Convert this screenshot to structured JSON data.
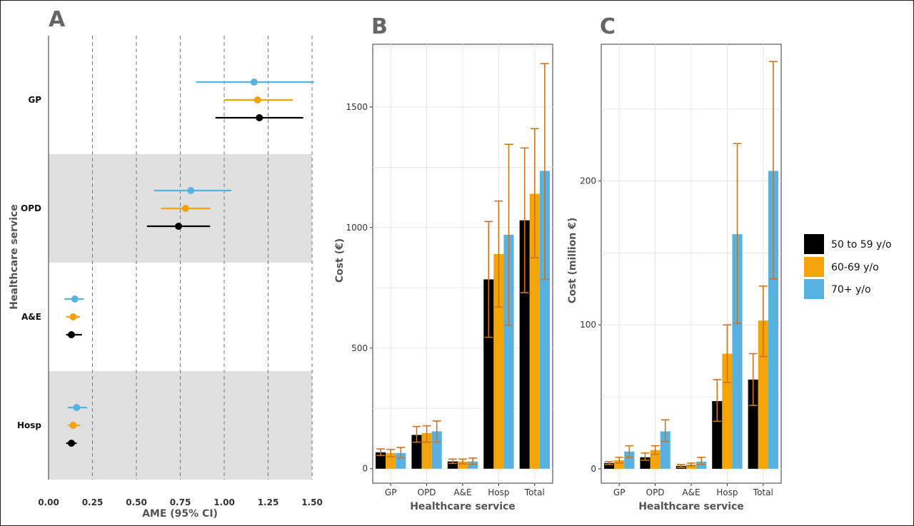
{
  "colors": {
    "s50": "#000000",
    "s60": "#f5a30a",
    "s70": "#58b2e1",
    "error": "#c9741f",
    "band": "#e0e0e0",
    "grid": "#e8e8e8",
    "dash": "#777777"
  },
  "legend": {
    "items": [
      "50 to 59 y/o",
      "60-69 y/o",
      "70+ y/o"
    ]
  },
  "chart_data": [
    {
      "panel": "A",
      "type": "scatter",
      "xlabel": "AME (95% CI)",
      "ylabel": "Healthcare service",
      "xlim": [
        0,
        1.5
      ],
      "xticks": [
        "0.00",
        "0.25",
        "0.50",
        "0.75",
        "1.00",
        "1.25",
        "1.50"
      ],
      "categories": [
        "GP",
        "OPD",
        "A&E",
        "Hosp"
      ],
      "shaded_bands": [
        "OPD",
        "Hosp"
      ],
      "series": [
        {
          "name": "50 to 59 y/o",
          "points": [
            {
              "cat": "GP",
              "est": 1.2,
              "lo": 0.95,
              "hi": 1.45
            },
            {
              "cat": "OPD",
              "est": 0.74,
              "lo": 0.56,
              "hi": 0.92
            },
            {
              "cat": "A&E",
              "est": 0.13,
              "lo": 0.1,
              "hi": 0.19
            },
            {
              "cat": "Hosp",
              "est": 0.13,
              "lo": 0.1,
              "hi": 0.16
            }
          ]
        },
        {
          "name": "60-69 y/o",
          "points": [
            {
              "cat": "GP",
              "est": 1.19,
              "lo": 1.0,
              "hi": 1.39
            },
            {
              "cat": "OPD",
              "est": 0.78,
              "lo": 0.64,
              "hi": 0.92
            },
            {
              "cat": "A&E",
              "est": 0.14,
              "lo": 0.1,
              "hi": 0.18
            },
            {
              "cat": "Hosp",
              "est": 0.14,
              "lo": 0.11,
              "hi": 0.18
            }
          ]
        },
        {
          "name": "70+ y/o",
          "points": [
            {
              "cat": "GP",
              "est": 1.17,
              "lo": 0.84,
              "hi": 1.51
            },
            {
              "cat": "OPD",
              "est": 0.81,
              "lo": 0.6,
              "hi": 1.04
            },
            {
              "cat": "A&E",
              "est": 0.15,
              "lo": 0.09,
              "hi": 0.2
            },
            {
              "cat": "Hosp",
              "est": 0.16,
              "lo": 0.11,
              "hi": 0.22
            }
          ]
        }
      ]
    },
    {
      "panel": "B",
      "type": "bar",
      "xlabel": "Healthcare service",
      "ylabel": "Cost (€)",
      "ylim": [
        -60,
        1760
      ],
      "yticks": [
        0,
        500,
        1000,
        1500
      ],
      "categories": [
        "GP",
        "OPD",
        "A&E",
        "Hosp",
        "Total"
      ],
      "series": [
        {
          "name": "50 to 59 y/o",
          "values": [
            68,
            140,
            30,
            785,
            1030
          ],
          "lo": [
            55,
            110,
            22,
            545,
            730
          ],
          "hi": [
            82,
            175,
            40,
            1025,
            1330
          ]
        },
        {
          "name": "60-69 y/o",
          "values": [
            65,
            148,
            30,
            890,
            1140
          ],
          "lo": [
            50,
            110,
            20,
            670,
            875
          ],
          "hi": [
            80,
            178,
            40,
            1110,
            1410
          ]
        },
        {
          "name": "70+ y/o",
          "values": [
            65,
            155,
            30,
            970,
            1235
          ],
          "lo": [
            45,
            110,
            18,
            595,
            785
          ],
          "hi": [
            88,
            198,
            44,
            1345,
            1680
          ]
        }
      ]
    },
    {
      "panel": "C",
      "type": "bar",
      "xlabel": "Healthcare service",
      "ylabel": "Cost (million €)",
      "ylim": [
        -10,
        295
      ],
      "yticks": [
        0,
        100,
        200
      ],
      "categories": [
        "GP",
        "OPD",
        "A&E",
        "Hosp",
        "Total"
      ],
      "series": [
        {
          "name": "50 to 59 y/o",
          "values": [
            4,
            8,
            2,
            47,
            62
          ],
          "lo": [
            3,
            6,
            1,
            33,
            44
          ],
          "hi": [
            5,
            11,
            3,
            62,
            80
          ]
        },
        {
          "name": "60-69 y/o",
          "values": [
            6,
            13,
            3,
            80,
            103
          ],
          "lo": [
            4,
            10,
            2,
            60,
            78
          ],
          "hi": [
            8,
            16,
            4,
            100,
            127
          ]
        },
        {
          "name": "70+ y/o",
          "values": [
            12,
            26,
            5,
            163,
            207
          ],
          "lo": [
            8,
            19,
            3,
            101,
            132
          ],
          "hi": [
            16,
            34,
            8,
            226,
            283
          ]
        }
      ]
    }
  ]
}
